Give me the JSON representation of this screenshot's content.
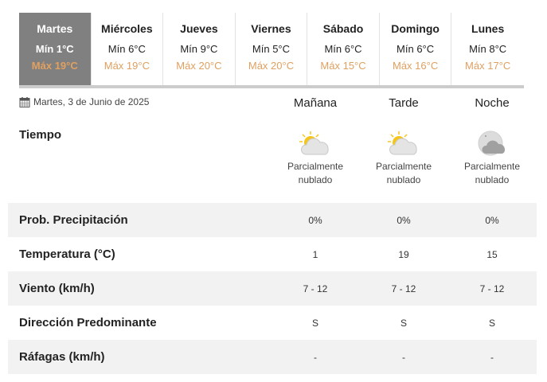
{
  "days": [
    {
      "day": "Martes",
      "min": "Mín 1°C",
      "max": "Máx 19°C"
    },
    {
      "day": "Miércoles",
      "min": "Mín 6°C",
      "max": "Máx 19°C"
    },
    {
      "day": "Jueves",
      "min": "Mín 9°C",
      "max": "Máx 20°C"
    },
    {
      "day": "Viernes",
      "min": "Mín 5°C",
      "max": "Máx 20°C"
    },
    {
      "day": "Sábado",
      "min": "Mín 6°C",
      "max": "Máx 15°C"
    },
    {
      "day": "Domingo",
      "min": "Mín 6°C",
      "max": "Máx 16°C"
    },
    {
      "day": "Lunes",
      "min": "Mín 8°C",
      "max": "Máx 17°C"
    }
  ],
  "selected_day": 0,
  "date": "Martes, 3 de Junio de 2025",
  "periods": [
    "Mañana",
    "Tarde",
    "Noche"
  ],
  "weather": {
    "label": "Tiempo",
    "items": [
      {
        "icon": "partly-cloudy-day-icon",
        "text1": "Parcialmente",
        "text2": "nublado"
      },
      {
        "icon": "partly-cloudy-day-icon",
        "text1": "Parcialmente",
        "text2": "nublado"
      },
      {
        "icon": "partly-cloudy-night-icon",
        "text1": "Parcialmente",
        "text2": "nublado"
      }
    ]
  },
  "rows": [
    {
      "label": "Prob. Precipitación",
      "values": [
        "0%",
        "0%",
        "0%"
      ]
    },
    {
      "label": "Temperatura (°C)",
      "values": [
        "1",
        "19",
        "15"
      ]
    },
    {
      "label": "Viento (km/h)",
      "values": [
        "7 - 12",
        "7 - 12",
        "7 - 12"
      ]
    },
    {
      "label": "Dirección Predominante",
      "values": [
        "S",
        "S",
        "S"
      ]
    },
    {
      "label": "Ráfagas (km/h)",
      "values": [
        "-",
        "-",
        "-"
      ]
    }
  ],
  "colors": {
    "max_temp": "#e0a060",
    "active_tab": "#808080",
    "row_alt": "#f2f2f2"
  }
}
